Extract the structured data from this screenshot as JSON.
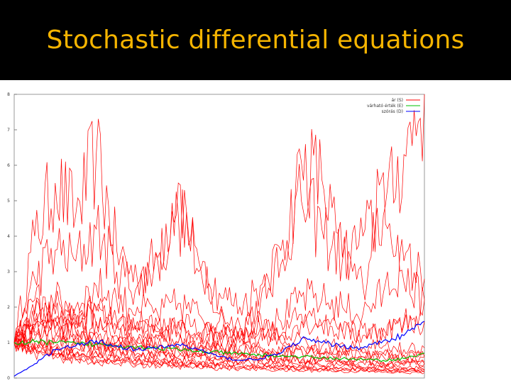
{
  "slide": {
    "title": "Stochastic differential equations"
  },
  "chart_data": {
    "type": "line",
    "title": "",
    "xlabel": "",
    "ylabel": "",
    "ylim": [
      0,
      8
    ],
    "yticks": [
      "0",
      "1",
      "2",
      "3",
      "4",
      "5",
      "6",
      "7",
      "8"
    ],
    "grid": false,
    "legend_position": "top-right",
    "x": [
      0,
      0.05,
      0.1,
      0.15,
      0.2,
      0.25,
      0.3,
      0.35,
      0.4,
      0.45,
      0.5,
      0.55,
      0.6,
      0.65,
      0.7,
      0.75,
      0.8,
      0.85,
      0.9,
      0.95,
      1.0
    ],
    "series": [
      {
        "name": "ár (S)",
        "color": "#ff0000",
        "paths": [
          [
            1.0,
            4.0,
            5.5,
            4.6,
            6.3,
            3.6,
            2.8,
            3.4,
            5.5,
            3.0,
            1.8,
            1.5,
            2.1,
            3.2,
            6.1,
            5.6,
            3.4,
            2.6,
            5.8,
            2.7,
            2.2
          ],
          [
            1.0,
            2.8,
            3.6,
            3.3,
            4.2,
            3.0,
            2.6,
            3.3,
            4.6,
            3.3,
            2.4,
            2.0,
            2.6,
            3.6,
            5.0,
            4.2,
            3.3,
            4.0,
            4.6,
            6.3,
            8.0
          ],
          [
            1.0,
            1.8,
            2.2,
            2.0,
            2.6,
            2.2,
            2.0,
            1.8,
            2.1,
            1.8,
            1.6,
            1.4,
            1.8,
            1.6,
            2.3,
            2.2,
            2.0,
            1.8,
            2.4,
            3.3,
            2.8
          ],
          [
            1.0,
            1.5,
            1.8,
            1.6,
            1.9,
            1.5,
            1.3,
            1.4,
            1.6,
            1.3,
            1.2,
            1.1,
            1.4,
            1.2,
            1.6,
            1.5,
            1.3,
            1.2,
            1.4,
            1.5,
            1.6
          ],
          [
            1.0,
            1.3,
            1.2,
            1.4,
            1.1,
            1.0,
            0.9,
            1.2,
            1.0,
            0.8,
            0.9,
            0.7,
            0.8,
            0.6,
            0.9,
            0.7,
            0.8,
            0.6,
            0.7,
            0.5,
            0.6
          ],
          [
            1.0,
            1.1,
            0.9,
            1.0,
            0.8,
            0.9,
            0.7,
            0.8,
            0.6,
            0.7,
            0.55,
            0.6,
            0.5,
            0.55,
            0.45,
            0.5,
            0.4,
            0.45,
            0.4,
            0.35,
            0.4
          ],
          [
            1.0,
            0.9,
            0.8,
            0.85,
            0.7,
            0.75,
            0.6,
            0.65,
            0.55,
            0.6,
            0.5,
            0.45,
            0.5,
            0.4,
            0.45,
            0.35,
            0.4,
            0.3,
            0.35,
            0.3,
            0.3
          ],
          [
            1.0,
            0.8,
            0.7,
            0.6,
            0.55,
            0.5,
            0.45,
            0.5,
            0.4,
            0.42,
            0.35,
            0.38,
            0.3,
            0.32,
            0.28,
            0.3,
            0.25,
            0.27,
            0.22,
            0.25,
            0.2
          ],
          [
            1.0,
            0.7,
            0.6,
            0.5,
            0.45,
            0.4,
            0.38,
            0.35,
            0.32,
            0.3,
            0.28,
            0.26,
            0.25,
            0.22,
            0.2,
            0.22,
            0.18,
            0.2,
            0.16,
            0.15,
            0.15
          ],
          [
            1.0,
            1.2,
            1.0,
            0.9,
            1.1,
            0.8,
            0.9,
            0.7,
            0.8,
            0.6,
            0.7,
            0.6,
            0.55,
            0.6,
            0.5,
            0.55,
            0.45,
            0.5,
            0.45,
            0.4,
            0.45
          ],
          [
            1.0,
            1.6,
            1.4,
            1.2,
            1.3,
            1.0,
            1.1,
            0.9,
            1.0,
            0.85,
            0.9,
            0.8,
            0.85,
            0.7,
            0.8,
            0.7,
            0.65,
            0.7,
            0.6,
            0.65,
            0.6
          ],
          [
            1.0,
            0.95,
            0.75,
            0.65,
            0.6,
            0.55,
            0.5,
            0.45,
            0.42,
            0.38,
            0.36,
            0.33,
            0.3,
            0.28,
            0.26,
            0.25,
            0.23,
            0.22,
            0.2,
            0.18,
            0.18
          ],
          [
            1.0,
            1.4,
            1.6,
            1.3,
            1.5,
            1.2,
            1.0,
            1.1,
            0.9,
            1.0,
            0.8,
            0.9,
            0.8,
            0.75,
            0.8,
            0.7,
            0.75,
            0.6,
            0.7,
            0.65,
            0.7
          ],
          [
            1.0,
            1.9,
            1.7,
            1.5,
            2.0,
            1.6,
            1.4,
            1.5,
            1.3,
            1.2,
            1.1,
            1.0,
            1.2,
            1.0,
            1.1,
            0.9,
            1.0,
            0.85,
            0.9,
            0.8,
            0.85
          ],
          [
            1.0,
            0.85,
            0.65,
            0.55,
            0.5,
            0.48,
            0.45,
            0.4,
            0.38,
            0.36,
            0.33,
            0.3,
            0.32,
            0.28,
            0.3,
            0.26,
            0.27,
            0.25,
            0.24,
            0.22,
            0.22
          ],
          [
            1.0,
            2.2,
            2.0,
            1.8,
            1.6,
            1.4,
            1.6,
            1.3,
            1.5,
            1.2,
            1.3,
            1.1,
            1.4,
            1.2,
            1.8,
            1.5,
            1.3,
            1.4,
            1.2,
            1.6,
            2.2
          ],
          [
            1.0,
            1.0,
            0.8,
            0.7,
            0.75,
            0.65,
            0.6,
            0.55,
            0.5,
            0.48,
            0.42,
            0.45,
            0.4,
            0.38,
            0.35,
            0.33,
            0.32,
            0.3,
            0.28,
            0.27,
            0.25
          ],
          [
            1.0,
            1.5,
            1.3,
            1.1,
            1.0,
            0.9,
            1.0,
            0.8,
            0.75,
            0.7,
            0.65,
            0.6,
            0.62,
            0.55,
            0.5,
            0.52,
            0.48,
            0.45,
            0.42,
            0.45,
            0.4
          ]
        ]
      },
      {
        "name": "várható érték (E)",
        "color": "#00c000",
        "values": [
          1.0,
          1.02,
          1.0,
          0.97,
          0.95,
          0.92,
          0.88,
          0.85,
          0.8,
          0.75,
          0.72,
          0.68,
          0.65,
          0.62,
          0.6,
          0.57,
          0.55,
          0.52,
          0.5,
          0.55,
          0.7
        ]
      },
      {
        "name": "szórás (D)",
        "color": "#0000ff",
        "values": [
          0.05,
          0.4,
          0.8,
          0.9,
          1.05,
          0.9,
          0.8,
          0.85,
          0.95,
          0.8,
          0.6,
          0.5,
          0.55,
          0.7,
          1.1,
          1.0,
          0.9,
          0.85,
          1.05,
          1.2,
          1.6
        ]
      }
    ]
  }
}
